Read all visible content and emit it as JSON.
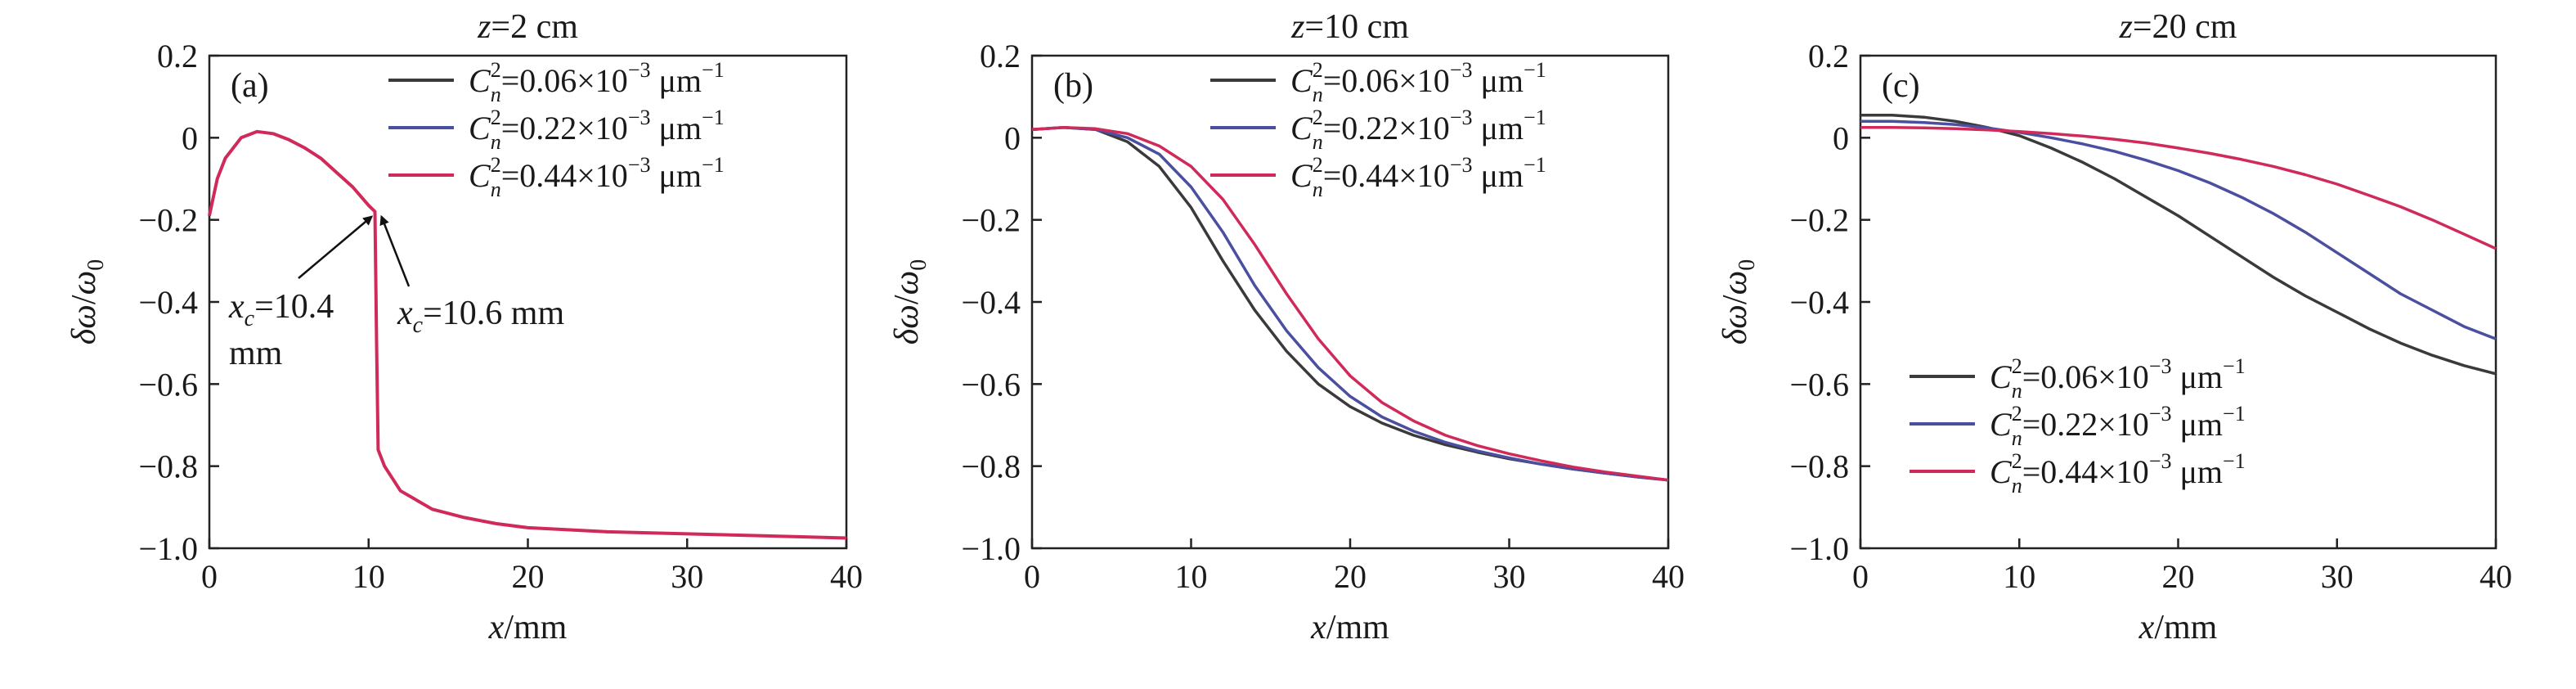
{
  "figure": {
    "panels": [
      {
        "title_var": "z",
        "title_val": "=2 cm",
        "panel_label": "(a)",
        "xlabel_var": "x",
        "xlabel_unit": "/mm",
        "ylabel_num": "δω",
        "ylabel_sep": "/",
        "ylabel_den": "ω",
        "ylabel_den_sub": "0",
        "legend_position": "top-right",
        "annotations": [
          {
            "var": "x",
            "sub": "c",
            "text": "=10.4",
            "text2": "mm"
          },
          {
            "var": "x",
            "sub": "c",
            "text": "=10.6 mm"
          }
        ]
      },
      {
        "title_var": "z",
        "title_val": "=10 cm",
        "panel_label": "(b)",
        "xlabel_var": "x",
        "xlabel_unit": "/mm",
        "ylabel_num": "δω",
        "ylabel_sep": "/",
        "ylabel_den": "ω",
        "ylabel_den_sub": "0",
        "legend_position": "top-right",
        "annotations": []
      },
      {
        "title_var": "z",
        "title_val": "=20 cm",
        "panel_label": "(c)",
        "xlabel_var": "x",
        "xlabel_unit": "/mm",
        "ylabel_num": "δω",
        "ylabel_sep": "/",
        "ylabel_den": "ω",
        "ylabel_den_sub": "0",
        "legend_position": "bottom-left",
        "annotations": []
      }
    ],
    "legend": [
      {
        "var": "C",
        "sup": "2",
        "sub": "n",
        "value": "=0.06×10",
        "exp": "−3",
        "unit": " μm",
        "unit_exp": "−1",
        "color": "#3a3a3a"
      },
      {
        "var": "C",
        "sup": "2",
        "sub": "n",
        "value": "=0.22×10",
        "exp": "−3",
        "unit": " μm",
        "unit_exp": "−1",
        "color": "#4a4fa0"
      },
      {
        "var": "C",
        "sup": "2",
        "sub": "n",
        "value": "=0.44×10",
        "exp": "−3",
        "unit": " μm",
        "unit_exp": "−1",
        "color": "#d02a5a"
      }
    ]
  },
  "chart_data": [
    {
      "type": "line",
      "title": "z=2 cm",
      "xlabel": "x/mm",
      "ylabel": "δω/ω0",
      "xlim": [
        0,
        40
      ],
      "ylim": [
        -1.0,
        0.2
      ],
      "xticks": [
        0,
        10,
        20,
        30,
        40
      ],
      "yticks": [
        0.2,
        0,
        -0.2,
        -0.4,
        -0.6,
        -0.8,
        -1.0
      ],
      "ytick_labels": [
        "0.2",
        "0",
        "−0.2",
        "−0.4",
        "−0.6",
        "−0.8",
        "−1.0"
      ],
      "grid": false,
      "series": [
        {
          "name": "C_n^2=0.06×10^-3 μm^-1",
          "color": "#3a3a3a",
          "x": [
            0,
            0.5,
            1,
            2,
            3,
            4,
            5,
            6,
            7,
            8,
            9,
            10,
            10.4,
            10.5,
            10.6,
            11,
            12,
            14,
            16,
            18,
            20,
            25,
            30,
            35,
            40
          ],
          "y": [
            -0.19,
            -0.1,
            -0.05,
            0.0,
            0.015,
            0.01,
            -0.005,
            -0.025,
            -0.05,
            -0.085,
            -0.12,
            -0.165,
            -0.18,
            -0.5,
            -0.76,
            -0.8,
            -0.86,
            -0.905,
            -0.925,
            -0.94,
            -0.95,
            -0.96,
            -0.965,
            -0.97,
            -0.975
          ]
        },
        {
          "name": "C_n^2=0.22×10^-3 μm^-1",
          "color": "#4a4fa0",
          "x": [
            0,
            0.5,
            1,
            2,
            3,
            4,
            5,
            6,
            7,
            8,
            9,
            10,
            10.4,
            10.5,
            10.6,
            11,
            12,
            14,
            16,
            18,
            20,
            25,
            30,
            35,
            40
          ],
          "y": [
            -0.19,
            -0.1,
            -0.05,
            0.0,
            0.015,
            0.01,
            -0.005,
            -0.025,
            -0.05,
            -0.085,
            -0.12,
            -0.165,
            -0.18,
            -0.5,
            -0.76,
            -0.8,
            -0.86,
            -0.905,
            -0.925,
            -0.94,
            -0.95,
            -0.96,
            -0.965,
            -0.97,
            -0.975
          ]
        },
        {
          "name": "C_n^2=0.44×10^-3 μm^-1",
          "color": "#d02a5a",
          "x": [
            0,
            0.5,
            1,
            2,
            3,
            4,
            5,
            6,
            7,
            8,
            9,
            10,
            10.4,
            10.5,
            10.6,
            11,
            12,
            14,
            16,
            18,
            20,
            25,
            30,
            35,
            40
          ],
          "y": [
            -0.19,
            -0.1,
            -0.05,
            0.0,
            0.015,
            0.01,
            -0.005,
            -0.025,
            -0.05,
            -0.085,
            -0.12,
            -0.165,
            -0.18,
            -0.5,
            -0.76,
            -0.8,
            -0.86,
            -0.905,
            -0.925,
            -0.94,
            -0.95,
            -0.96,
            -0.965,
            -0.97,
            -0.975
          ]
        }
      ]
    },
    {
      "type": "line",
      "title": "z=10 cm",
      "xlabel": "x/mm",
      "ylabel": "δω/ω0",
      "xlim": [
        0,
        40
      ],
      "ylim": [
        -1.0,
        0.2
      ],
      "xticks": [
        0,
        10,
        20,
        30,
        40
      ],
      "yticks": [
        0.2,
        0,
        -0.2,
        -0.4,
        -0.6,
        -0.8,
        -1.0
      ],
      "ytick_labels": [
        "0.2",
        "0",
        "−0.2",
        "−0.4",
        "−0.6",
        "−0.8",
        "−1.0"
      ],
      "grid": false,
      "series": [
        {
          "name": "C_n^2=0.06×10^-3 μm^-1",
          "color": "#3a3a3a",
          "x": [
            0,
            2,
            4,
            6,
            8,
            10,
            12,
            14,
            16,
            18,
            20,
            22,
            24,
            26,
            28,
            30,
            32,
            34,
            36,
            38,
            40
          ],
          "y": [
            0.02,
            0.025,
            0.02,
            -0.01,
            -0.07,
            -0.17,
            -0.3,
            -0.42,
            -0.52,
            -0.6,
            -0.655,
            -0.695,
            -0.725,
            -0.748,
            -0.766,
            -0.782,
            -0.795,
            -0.807,
            -0.817,
            -0.826,
            -0.834
          ]
        },
        {
          "name": "C_n^2=0.22×10^-3 μm^-1",
          "color": "#4a4fa0",
          "x": [
            0,
            2,
            4,
            6,
            8,
            10,
            12,
            14,
            16,
            18,
            20,
            22,
            24,
            26,
            28,
            30,
            32,
            34,
            36,
            38,
            40
          ],
          "y": [
            0.02,
            0.025,
            0.02,
            0.0,
            -0.04,
            -0.12,
            -0.23,
            -0.36,
            -0.47,
            -0.56,
            -0.63,
            -0.68,
            -0.715,
            -0.742,
            -0.763,
            -0.78,
            -0.795,
            -0.807,
            -0.817,
            -0.826,
            -0.834
          ]
        },
        {
          "name": "C_n^2=0.44×10^-3 μm^-1",
          "color": "#d02a5a",
          "x": [
            0,
            2,
            4,
            6,
            8,
            10,
            12,
            14,
            16,
            18,
            20,
            22,
            24,
            26,
            28,
            30,
            32,
            34,
            36,
            38,
            40
          ],
          "y": [
            0.02,
            0.025,
            0.022,
            0.01,
            -0.02,
            -0.07,
            -0.15,
            -0.26,
            -0.38,
            -0.49,
            -0.58,
            -0.645,
            -0.69,
            -0.725,
            -0.75,
            -0.77,
            -0.787,
            -0.802,
            -0.814,
            -0.824,
            -0.834
          ]
        }
      ]
    },
    {
      "type": "line",
      "title": "z=20 cm",
      "xlabel": "x/mm",
      "ylabel": "δω/ω0",
      "xlim": [
        0,
        40
      ],
      "ylim": [
        -1.0,
        0.2
      ],
      "xticks": [
        0,
        10,
        20,
        30,
        40
      ],
      "yticks": [
        0.2,
        0,
        -0.2,
        -0.4,
        -0.6,
        -0.8,
        -1.0
      ],
      "ytick_labels": [
        "0.2",
        "0",
        "−0.2",
        "−0.4",
        "−0.6",
        "−0.8",
        "−1.0"
      ],
      "grid": false,
      "series": [
        {
          "name": "C_n^2=0.06×10^-3 μm^-1",
          "color": "#3a3a3a",
          "x": [
            0,
            2,
            4,
            6,
            8,
            10,
            12,
            14,
            16,
            18,
            20,
            22,
            24,
            26,
            28,
            30,
            32,
            34,
            36,
            38,
            40
          ],
          "y": [
            0.055,
            0.055,
            0.05,
            0.04,
            0.025,
            0.005,
            -0.025,
            -0.06,
            -0.1,
            -0.145,
            -0.19,
            -0.24,
            -0.29,
            -0.34,
            -0.385,
            -0.425,
            -0.465,
            -0.5,
            -0.53,
            -0.555,
            -0.575
          ]
        },
        {
          "name": "C_n^2=0.22×10^-3 μm^-1",
          "color": "#4a4fa0",
          "x": [
            0,
            2,
            4,
            6,
            8,
            10,
            12,
            14,
            16,
            18,
            20,
            22,
            24,
            26,
            28,
            30,
            32,
            34,
            36,
            38,
            40
          ],
          "y": [
            0.04,
            0.04,
            0.037,
            0.032,
            0.024,
            0.013,
            0.0,
            -0.015,
            -0.033,
            -0.055,
            -0.08,
            -0.11,
            -0.145,
            -0.185,
            -0.23,
            -0.28,
            -0.33,
            -0.38,
            -0.42,
            -0.46,
            -0.49
          ]
        },
        {
          "name": "C_n^2=0.44×10^-3 μm^-1",
          "color": "#d02a5a",
          "x": [
            0,
            2,
            4,
            6,
            8,
            10,
            12,
            14,
            16,
            18,
            20,
            22,
            24,
            26,
            28,
            30,
            32,
            34,
            36,
            38,
            40
          ],
          "y": [
            0.025,
            0.025,
            0.024,
            0.022,
            0.019,
            0.015,
            0.01,
            0.004,
            -0.004,
            -0.013,
            -0.025,
            -0.038,
            -0.053,
            -0.07,
            -0.09,
            -0.113,
            -0.14,
            -0.168,
            -0.2,
            -0.235,
            -0.27
          ]
        }
      ]
    }
  ]
}
